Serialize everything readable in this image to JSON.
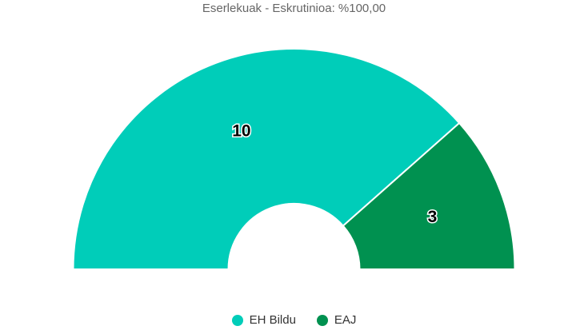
{
  "chart_data": {
    "type": "pie",
    "variant": "semicircle-donut",
    "title": "Eserlekuak - Eskrutinioa: %100,00",
    "categories": [
      "EH Bildu",
      "EAJ"
    ],
    "values": [
      10,
      3
    ],
    "colors": [
      "#00cdb9",
      "#009150"
    ],
    "data_labels": [
      "10",
      "3"
    ],
    "legend_placement": "bottom-center"
  }
}
